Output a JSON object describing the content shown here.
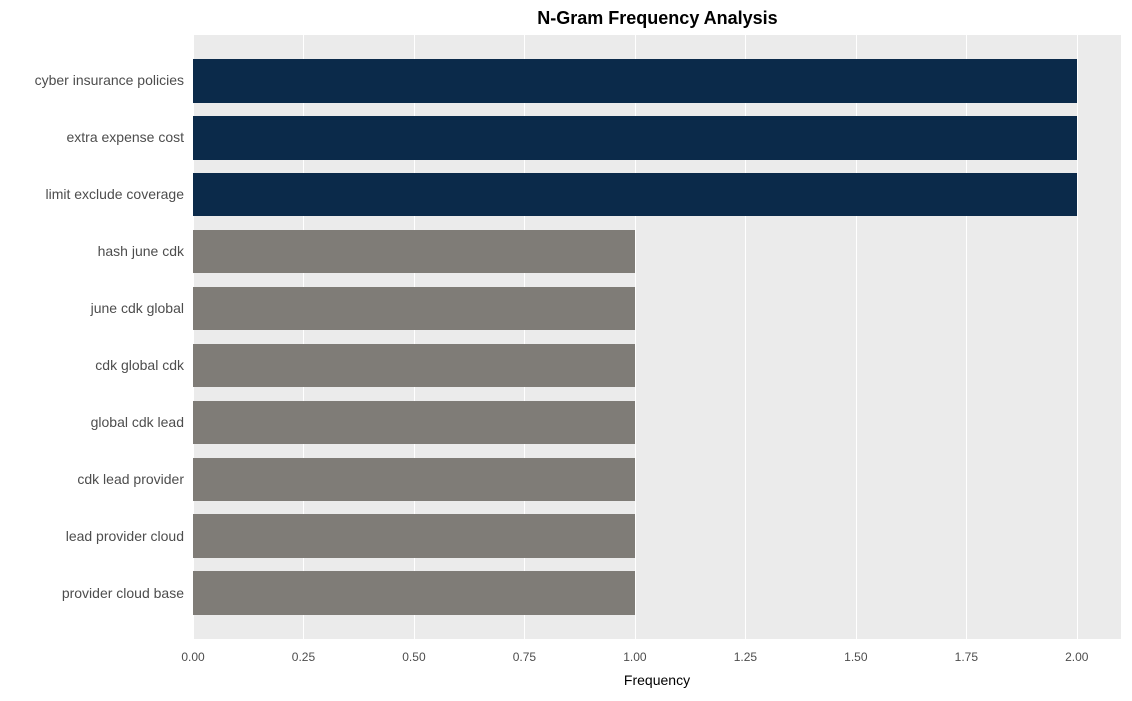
{
  "chart": {
    "type": "bar-horizontal",
    "title": "N-Gram Frequency Analysis",
    "title_fontsize": 18,
    "title_fontweight": "bold",
    "xlabel": "Frequency",
    "xlabel_fontsize": 14,
    "plot_background": "#ebebeb",
    "grid_color": "#ffffff",
    "y_tick_fontsize": 14,
    "x_tick_fontsize": 12,
    "tick_color": "#4d4d4d",
    "xlim": [
      0,
      2.1
    ],
    "xticks": [
      0.0,
      0.25,
      0.5,
      0.75,
      1.0,
      1.25,
      1.5,
      1.75,
      2.0
    ],
    "xtick_labels": [
      "0.00",
      "0.25",
      "0.50",
      "0.75",
      "1.00",
      "1.25",
      "1.50",
      "1.75",
      "2.00"
    ],
    "bar_height_ratio": 0.77,
    "series": [
      {
        "label": "cyber insurance policies",
        "value": 2.0,
        "color": "#0b2a4a"
      },
      {
        "label": "extra expense cost",
        "value": 2.0,
        "color": "#0b2a4a"
      },
      {
        "label": "limit exclude coverage",
        "value": 2.0,
        "color": "#0b2a4a"
      },
      {
        "label": "hash june cdk",
        "value": 1.0,
        "color": "#7f7c77"
      },
      {
        "label": "june cdk global",
        "value": 1.0,
        "color": "#7f7c77"
      },
      {
        "label": "cdk global cdk",
        "value": 1.0,
        "color": "#7f7c77"
      },
      {
        "label": "global cdk lead",
        "value": 1.0,
        "color": "#7f7c77"
      },
      {
        "label": "cdk lead provider",
        "value": 1.0,
        "color": "#7f7c77"
      },
      {
        "label": "lead provider cloud",
        "value": 1.0,
        "color": "#7f7c77"
      },
      {
        "label": "provider cloud base",
        "value": 1.0,
        "color": "#7f7c77"
      }
    ]
  }
}
